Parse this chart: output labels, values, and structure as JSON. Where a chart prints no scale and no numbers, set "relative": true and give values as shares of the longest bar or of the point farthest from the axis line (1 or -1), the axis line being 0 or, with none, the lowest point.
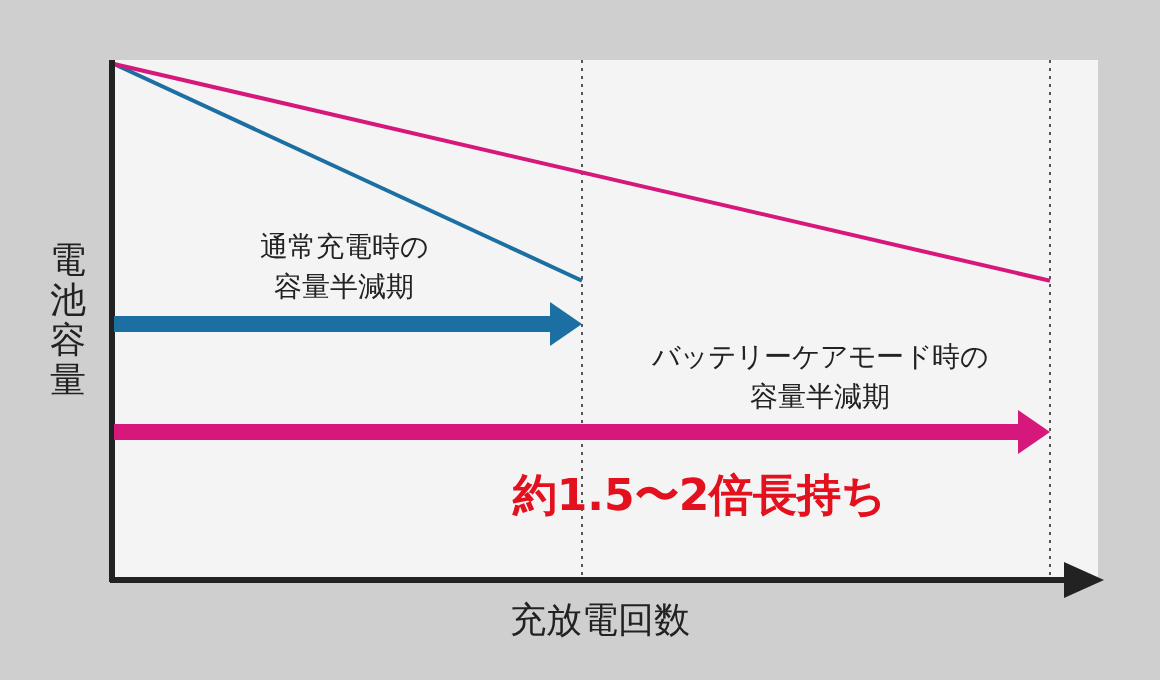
{
  "chart_data": {
    "type": "line",
    "relative": true,
    "xlabel": "充放電回数",
    "ylabel": "電池容量",
    "categories": [
      null,
      null,
      null
    ],
    "series": [
      {
        "color": "#1b6fa3",
        "values": [
          1,
          0.58,
          null
        ]
      },
      {
        "color": "#d6177b",
        "values": [
          1,
          null,
          0.58
        ]
      }
    ],
    "annotations": [
      "通常充電時の",
      "容量半減期",
      "バッテリーケアモード時の",
      "容量半減期",
      "約1.5〜2倍長持ち"
    ],
    "line_style": "solid"
  }
}
